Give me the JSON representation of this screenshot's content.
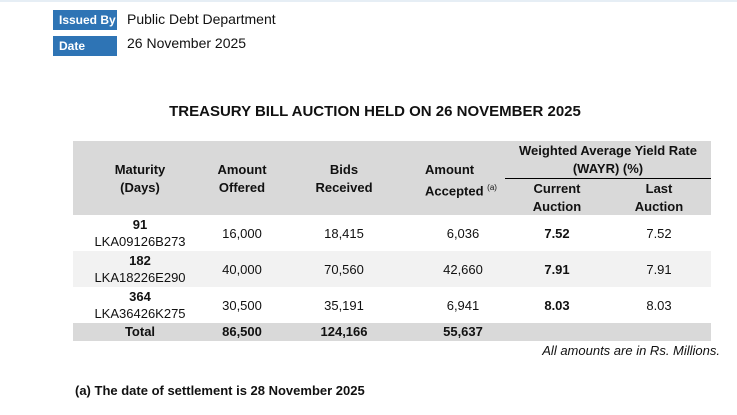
{
  "header": {
    "issued_by_label": "Issued By",
    "issued_by": "Public Debt Department",
    "date_label": "Date",
    "date": "26 November 2025"
  },
  "title": "TREASURY BILL AUCTION HELD ON 26 NOVEMBER 2025",
  "table": {
    "columns": {
      "maturity": "Maturity (Days)",
      "offered": "Amount Offered",
      "bids": "Bids Received",
      "accepted": "Amount Accepted",
      "accepted_note": "(a)",
      "wayr": "Weighted Average Yield Rate (WAYR) (%)",
      "current": "Current Auction",
      "last": "Last Auction"
    },
    "rows": [
      [
        "91",
        "LKA09126B273",
        "16,000",
        "18,415",
        "6,036",
        "7.52",
        "7.52"
      ],
      [
        "182",
        "LKA18226E290",
        "40,000",
        "70,560",
        "42,660",
        "7.91",
        "7.91"
      ],
      [
        "364",
        "LKA36426K275",
        "30,500",
        "35,191",
        "6,941",
        "8.03",
        "8.03"
      ]
    ],
    "total": [
      "Total",
      "86,500",
      "124,166",
      "55,637"
    ]
  },
  "units_note": "All amounts are in Rs. Millions.",
  "footnote": "(a) The date of settlement is 28 November 2025"
}
